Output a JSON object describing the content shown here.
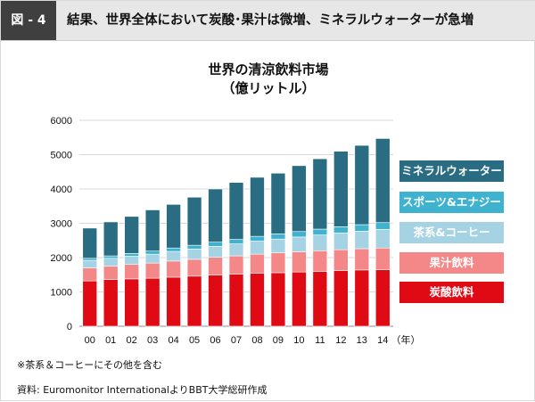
{
  "header": {
    "figure_label": "図 - 4",
    "title": "結果、世界全体において炭酸･果汁は微増、ミネラルウォーターが急増"
  },
  "chart_data": {
    "type": "bar",
    "stacked": true,
    "title": "世界の清涼飲料市場",
    "subtitle": "（億リットル）",
    "categories": [
      "00",
      "01",
      "02",
      "03",
      "04",
      "05",
      "06",
      "07",
      "08",
      "09",
      "10",
      "11",
      "12",
      "13",
      "14"
    ],
    "x_unit": "（年）",
    "ylim": [
      0,
      6000
    ],
    "yticks": [
      "0",
      "1000",
      "2000",
      "3000",
      "4000",
      "5000",
      "6000"
    ],
    "grid": true,
    "legend_position": "right",
    "series": [
      {
        "name": "炭酸飲料",
        "color": "#e00a14",
        "values": [
          1320,
          1360,
          1380,
          1400,
          1430,
          1460,
          1490,
          1520,
          1540,
          1560,
          1580,
          1600,
          1620,
          1640,
          1650
        ]
      },
      {
        "name": "果汁飲料",
        "color": "#f48888",
        "values": [
          380,
          390,
          420,
          440,
          470,
          490,
          520,
          530,
          560,
          580,
          590,
          600,
          610,
          620,
          630
        ]
      },
      {
        "name": "茶系&コーヒー",
        "color": "#a6d3e3",
        "values": [
          220,
          230,
          240,
          260,
          280,
          300,
          320,
          350,
          380,
          400,
          430,
          460,
          490,
          510,
          540
        ]
      },
      {
        "name": "スポーツ&エナジー",
        "color": "#3fb2cf",
        "values": [
          60,
          70,
          80,
          90,
          100,
          110,
          120,
          130,
          140,
          150,
          160,
          170,
          180,
          190,
          200
        ]
      },
      {
        "name": "ミネラルウォーター",
        "color": "#2a6d82",
        "values": [
          880,
          990,
          1080,
          1200,
          1270,
          1400,
          1550,
          1660,
          1720,
          1770,
          1920,
          2050,
          2200,
          2310,
          2450
        ]
      }
    ],
    "legend_order": [
      "ミネラルウォーター",
      "スポーツ&エナジー",
      "茶系&コーヒー",
      "果汁飲料",
      "炭酸飲料"
    ]
  },
  "footer": {
    "note": "※茶系＆コーヒーにその他を含む",
    "source": "資料: Euromonitor InternationalよりBBT大学総研作成"
  }
}
